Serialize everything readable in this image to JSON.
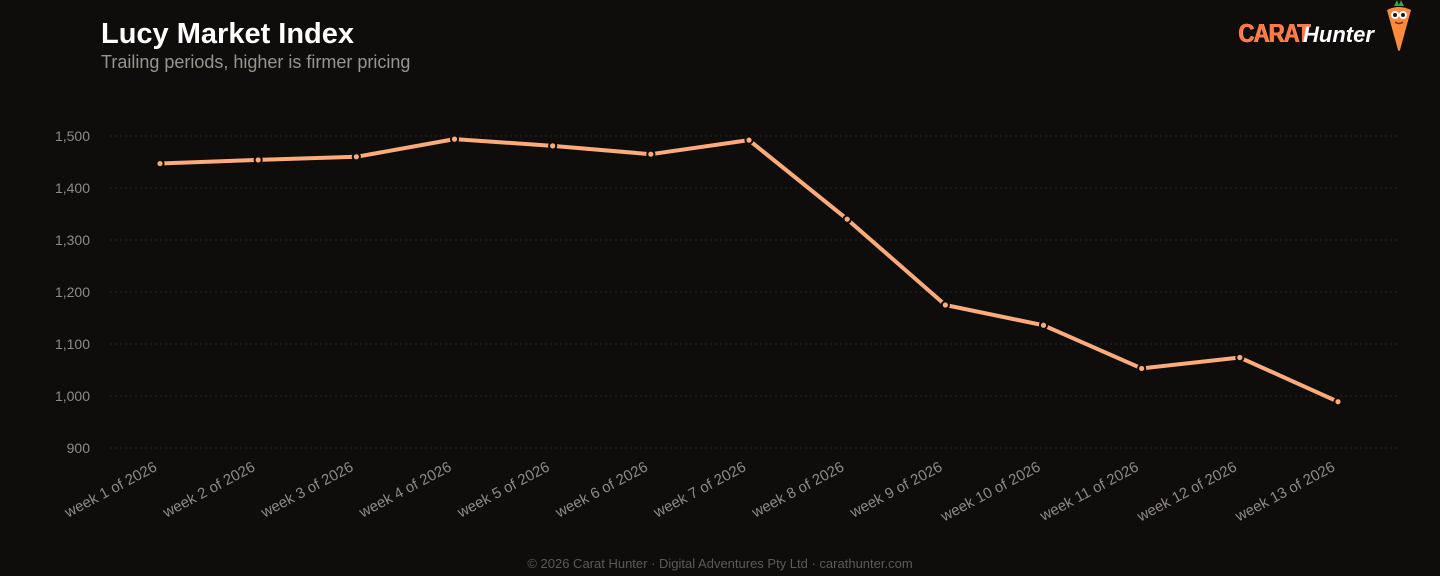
{
  "header": {
    "title": "Lucy Market Index",
    "subtitle": "Trailing periods, higher is firmer pricing"
  },
  "brand": {
    "carat": "CARAT",
    "hunter": "Hunter",
    "mascot_icon": "carrot-mascot-icon"
  },
  "footer": {
    "copyright": "© 2026 Carat Hunter · Digital Adventures Pty Ltd · carathunter.com"
  },
  "colors": {
    "background": "#0f0d0c",
    "line": "#ffab7a",
    "grid": "#2a2624",
    "tick_text": "#8f8a86",
    "brand_accent": "#ff7a45"
  },
  "chart_data": {
    "type": "line",
    "title": "Lucy Market Index",
    "subtitle": "Trailing periods, higher is firmer pricing",
    "xlabel": "",
    "ylabel": "",
    "ylim": [
      900,
      1500
    ],
    "yticks": [
      900,
      1000,
      1100,
      1200,
      1300,
      1400,
      1500
    ],
    "ytick_labels": [
      "900",
      "1,000",
      "1,100",
      "1,200",
      "1,300",
      "1,400",
      "1,500"
    ],
    "grid": true,
    "categories": [
      "week 1 of 2026",
      "week 2 of 2026",
      "week 3 of 2026",
      "week 4 of 2026",
      "week 5 of 2026",
      "week 6 of 2026",
      "week 7 of 2026",
      "week 8 of 2026",
      "week 9 of 2026",
      "week 10 of 2026",
      "week 11 of 2026",
      "week 12 of 2026",
      "week 13 of 2026"
    ],
    "series": [
      {
        "values": [
          1447,
          1454,
          1460,
          1494,
          1481,
          1465,
          1492,
          1340,
          1175,
          1136,
          1053,
          1074,
          989
        ]
      }
    ]
  }
}
